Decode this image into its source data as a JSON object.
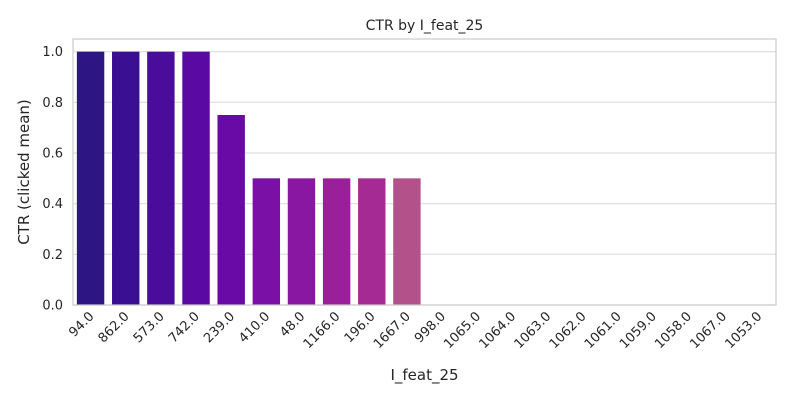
{
  "chart_data": {
    "type": "bar",
    "title": "CTR by I_feat_25",
    "xlabel": "I_feat_25",
    "ylabel": "CTR (clicked mean)",
    "categories": [
      "94.0",
      "862.0",
      "573.0",
      "742.0",
      "239.0",
      "410.0",
      "48.0",
      "1166.0",
      "196.0",
      "1667.0",
      "998.0",
      "1065.0",
      "1064.0",
      "1063.0",
      "1062.0",
      "1061.0",
      "1059.0",
      "1058.0",
      "1067.0",
      "1053.0"
    ],
    "values": [
      1.0,
      1.0,
      1.0,
      1.0,
      0.75,
      0.5,
      0.5,
      0.5,
      0.5,
      0.5,
      0.0,
      0.0,
      0.0,
      0.0,
      0.0,
      0.0,
      0.0,
      0.0,
      0.0,
      0.0
    ],
    "colors": [
      "#2d1584",
      "#3b0f91",
      "#4a0c9b",
      "#5a0aa2",
      "#6a0aa6",
      "#7a10a6",
      "#8a17a2",
      "#991f9b",
      "#a62a93",
      "#b3528a",
      "#b94a7e",
      "#c05474",
      "#c85f6a",
      "#cf6b5f",
      "#d67755",
      "#dd844b",
      "#e39242",
      "#e9a139",
      "#eeb131",
      "#f2c12a"
    ],
    "ylim": [
      0,
      1.05
    ],
    "yticks": [
      "0.0",
      "0.2",
      "0.4",
      "0.6",
      "0.8",
      "1.0"
    ],
    "grid": true,
    "legend": "none"
  }
}
